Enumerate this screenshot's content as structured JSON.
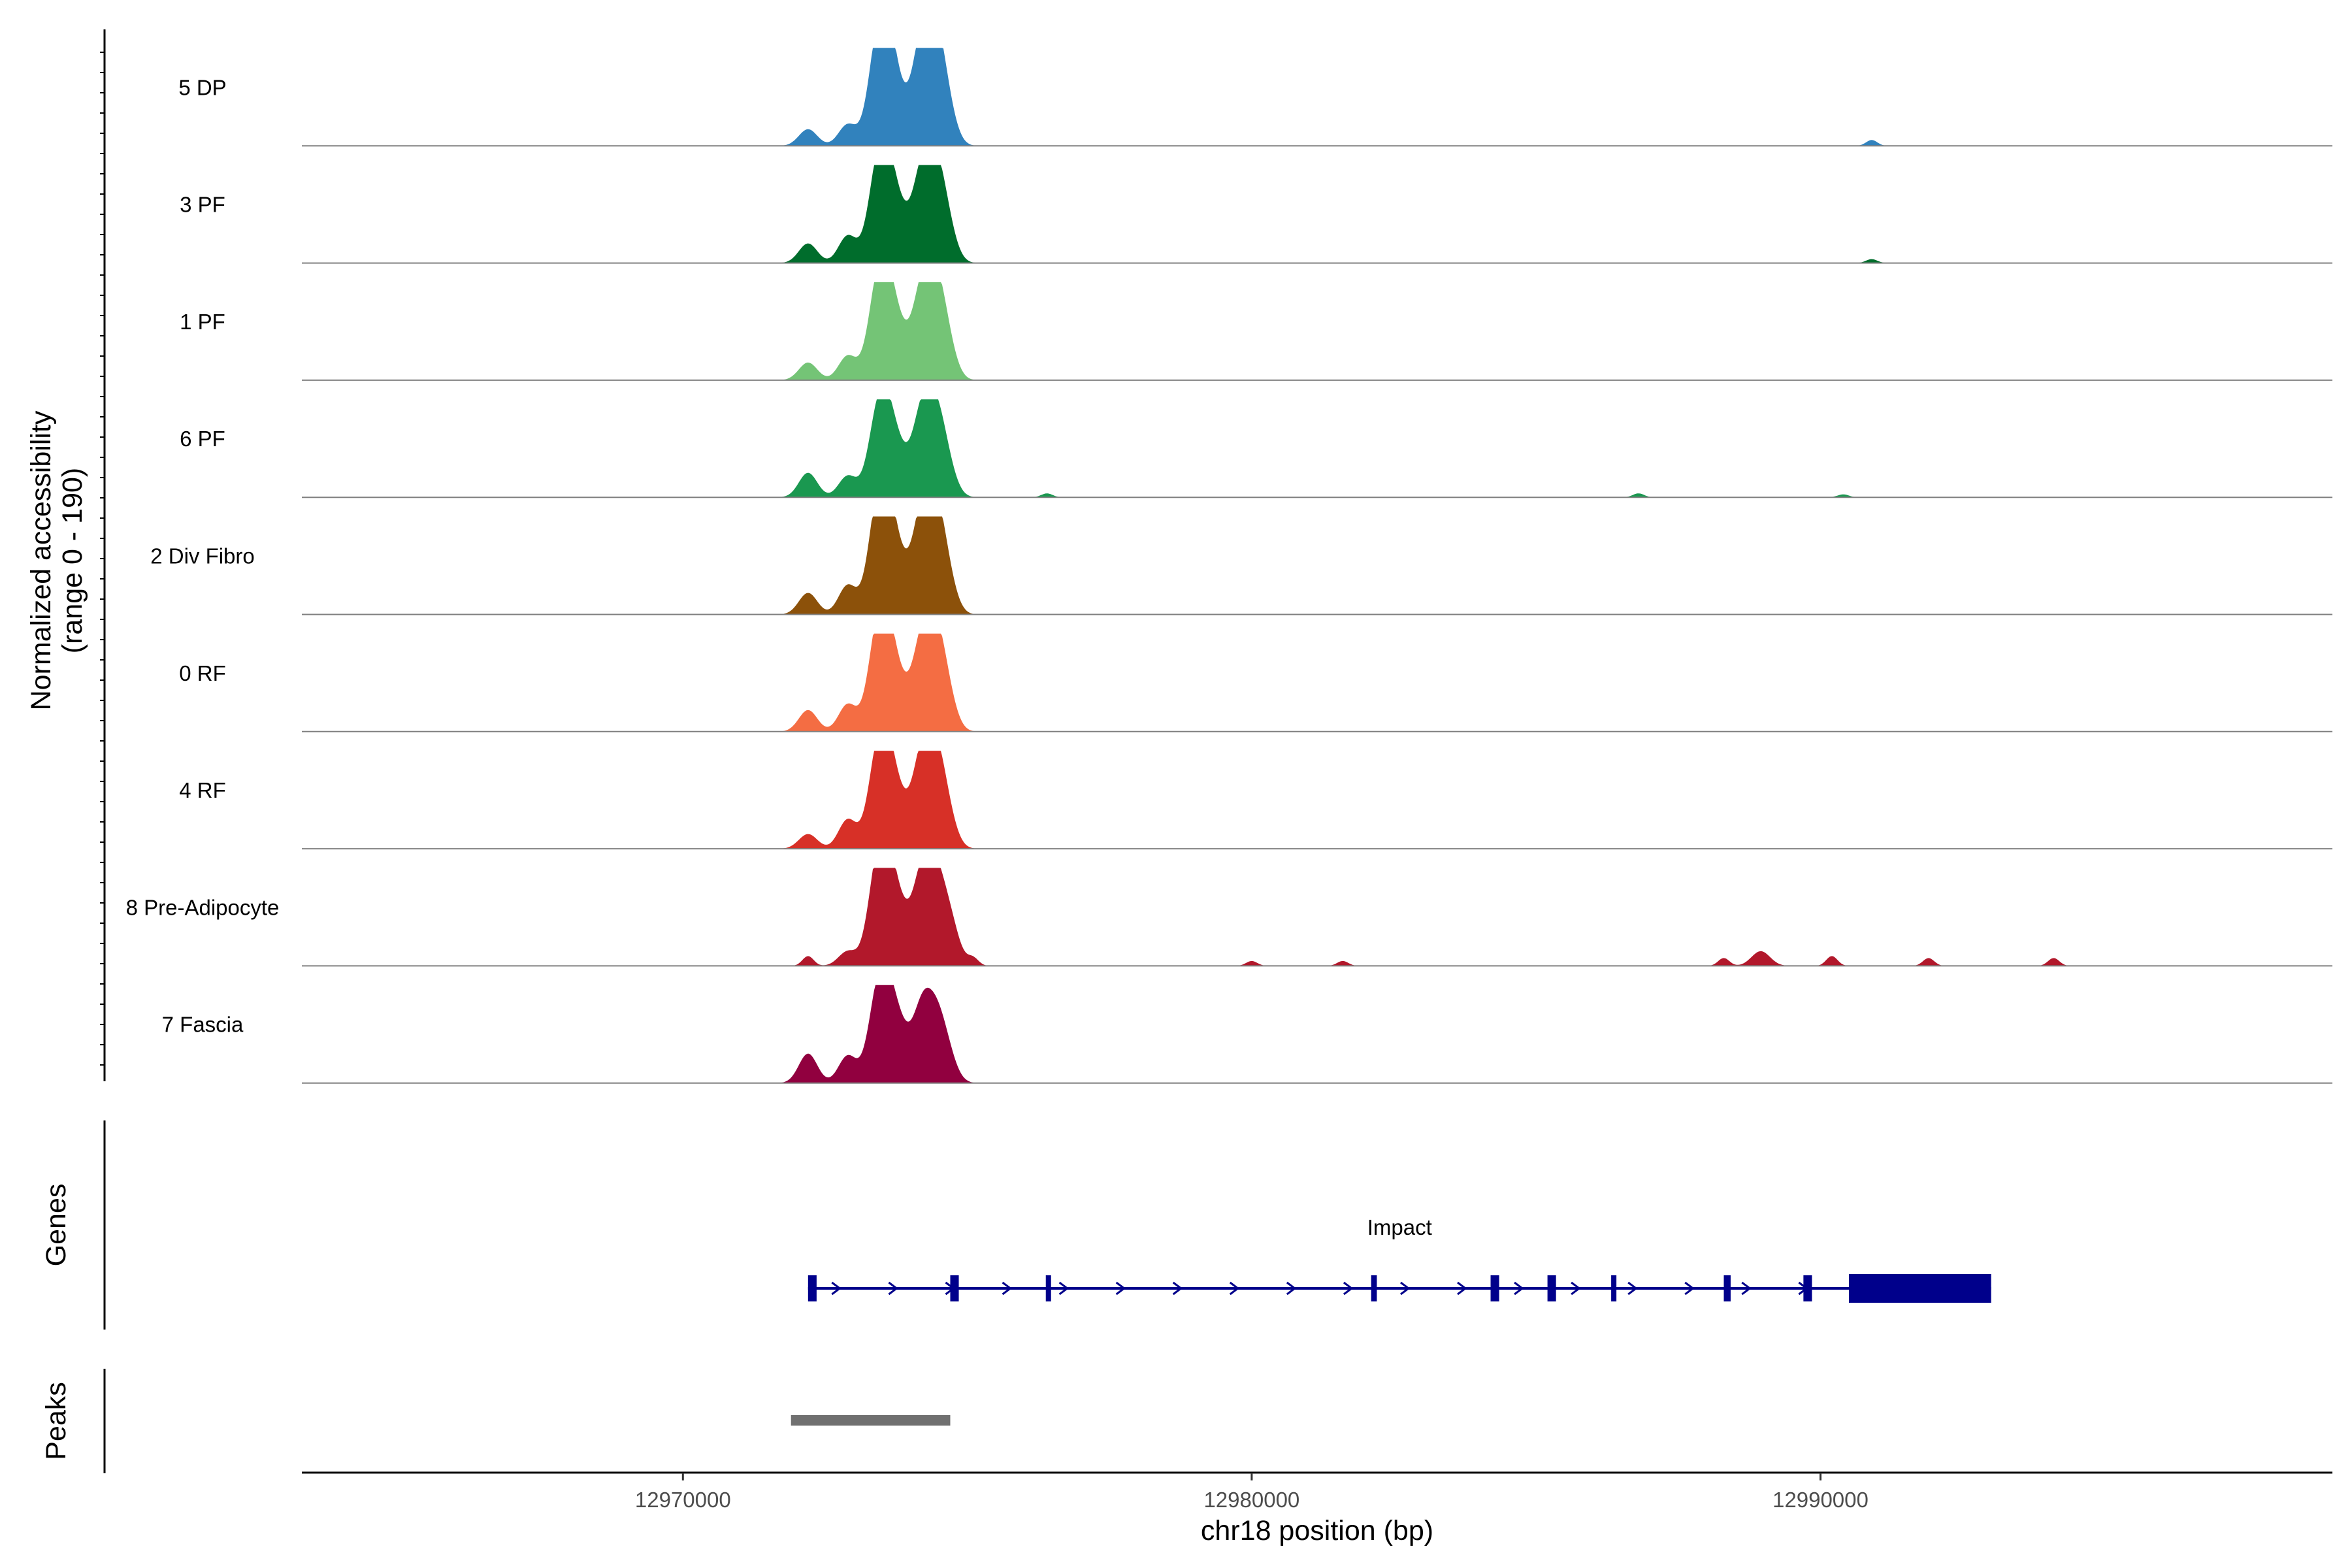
{
  "chart_data": {
    "type": "area",
    "title": "",
    "ylabel_line1": "Normalized accessibility",
    "ylabel_line2": "(range 0 - 190)",
    "y_range": [
      0,
      190
    ],
    "xlabel": "chr18 position (bp)",
    "xlim": [
      12963300,
      12999000
    ],
    "x_ticks": [
      12970000,
      12980000,
      12990000
    ],
    "x_tick_labels": [
      "12970000",
      "12980000",
      "12990000"
    ],
    "genes_label": "Genes",
    "peaks_label": "Peaks",
    "series": [
      {
        "name": "5 DP",
        "color": "#3182bd",
        "peaks": [
          [
            12972200,
            0.17
          ],
          [
            12972900,
            0.22
          ],
          [
            12973400,
            0.8
          ],
          [
            12973600,
            0.95
          ],
          [
            12973850,
            0.3
          ],
          [
            12974200,
            1.0
          ],
          [
            12974450,
            0.9
          ],
          [
            12974650,
            0.3
          ],
          [
            12990900,
            0.06
          ]
        ]
      },
      {
        "name": "3 PF",
        "color": "#006d2c",
        "peaks": [
          [
            12972200,
            0.2
          ],
          [
            12972900,
            0.28
          ],
          [
            12973400,
            0.75
          ],
          [
            12973600,
            0.8
          ],
          [
            12973850,
            0.35
          ],
          [
            12974200,
            0.85
          ],
          [
            12974450,
            0.78
          ],
          [
            12974650,
            0.3
          ],
          [
            12990900,
            0.04
          ]
        ]
      },
      {
        "name": "1 PF",
        "color": "#74c476",
        "peaks": [
          [
            12972200,
            0.18
          ],
          [
            12972900,
            0.25
          ],
          [
            12973400,
            0.75
          ],
          [
            12973600,
            0.8
          ],
          [
            12973850,
            0.33
          ],
          [
            12974200,
            0.85
          ],
          [
            12974450,
            0.8
          ],
          [
            12974650,
            0.3
          ]
        ]
      },
      {
        "name": "6 PF",
        "color": "#1a9850",
        "peaks": [
          [
            12972200,
            0.25
          ],
          [
            12972900,
            0.22
          ],
          [
            12973400,
            0.65
          ],
          [
            12973600,
            0.7
          ],
          [
            12973850,
            0.3
          ],
          [
            12974200,
            0.8
          ],
          [
            12974450,
            0.7
          ],
          [
            12974650,
            0.25
          ],
          [
            12976400,
            0.04
          ],
          [
            12986800,
            0.04
          ],
          [
            12990400,
            0.03
          ]
        ]
      },
      {
        "name": "2 Div Fibro",
        "color": "#8c510a",
        "peaks": [
          [
            12972200,
            0.22
          ],
          [
            12972900,
            0.3
          ],
          [
            12973400,
            0.85
          ],
          [
            12973600,
            0.9
          ],
          [
            12973850,
            0.35
          ],
          [
            12974200,
            0.95
          ],
          [
            12974450,
            0.85
          ],
          [
            12974650,
            0.3
          ]
        ]
      },
      {
        "name": "0 RF",
        "color": "#f46d43",
        "peaks": [
          [
            12972200,
            0.22
          ],
          [
            12972900,
            0.28
          ],
          [
            12973400,
            0.8
          ],
          [
            12973600,
            0.82
          ],
          [
            12973850,
            0.32
          ],
          [
            12974200,
            0.85
          ],
          [
            12974450,
            0.8
          ],
          [
            12974650,
            0.3
          ]
        ]
      },
      {
        "name": "4 RF",
        "color": "#d73027",
        "peaks": [
          [
            12972200,
            0.15
          ],
          [
            12972900,
            0.3
          ],
          [
            12973400,
            0.75
          ],
          [
            12973600,
            0.8
          ],
          [
            12973850,
            0.32
          ],
          [
            12974200,
            0.88
          ],
          [
            12974450,
            0.78
          ],
          [
            12974650,
            0.28
          ]
        ]
      },
      {
        "name": "8 Pre-Adipocyte",
        "color": "#b2182b",
        "peaks": [
          [
            12972200,
            0.1
          ],
          [
            12972900,
            0.15
          ],
          [
            12973400,
            0.8
          ],
          [
            12973600,
            0.85
          ],
          [
            12973850,
            0.4
          ],
          [
            12974200,
            0.85
          ],
          [
            12974450,
            0.75
          ],
          [
            12974700,
            0.4
          ],
          [
            12975100,
            0.08
          ],
          [
            12980000,
            0.05
          ],
          [
            12981600,
            0.05
          ],
          [
            12988300,
            0.08
          ],
          [
            12988950,
            0.15
          ],
          [
            12990200,
            0.1
          ],
          [
            12991900,
            0.08
          ],
          [
            12994100,
            0.08
          ]
        ]
      },
      {
        "name": "7 Fascia",
        "color": "#91003f",
        "peaks": [
          [
            12972200,
            0.3
          ],
          [
            12972900,
            0.28
          ],
          [
            12973400,
            0.7
          ],
          [
            12973600,
            0.75
          ],
          [
            12973850,
            0.4
          ],
          [
            12974200,
            0.7
          ],
          [
            12974450,
            0.55
          ],
          [
            12974650,
            0.25
          ]
        ]
      }
    ],
    "gene": {
      "name": "Impact",
      "color": "#00008b",
      "start": 12972200,
      "end": 12993000,
      "strand": "+",
      "exons": [
        [
          12972200,
          12972350
        ],
        [
          12974700,
          12974850
        ],
        [
          12976380,
          12976450
        ],
        [
          12982100,
          12982200
        ],
        [
          12984200,
          12984350
        ],
        [
          12985200,
          12985350
        ],
        [
          12986320,
          12986390
        ],
        [
          12988300,
          12988420
        ],
        [
          12989700,
          12989850
        ],
        [
          12990500,
          12993000
        ]
      ]
    },
    "peak_regions": [
      {
        "start": 12971900,
        "end": 12974700,
        "color": "#707070"
      }
    ]
  }
}
